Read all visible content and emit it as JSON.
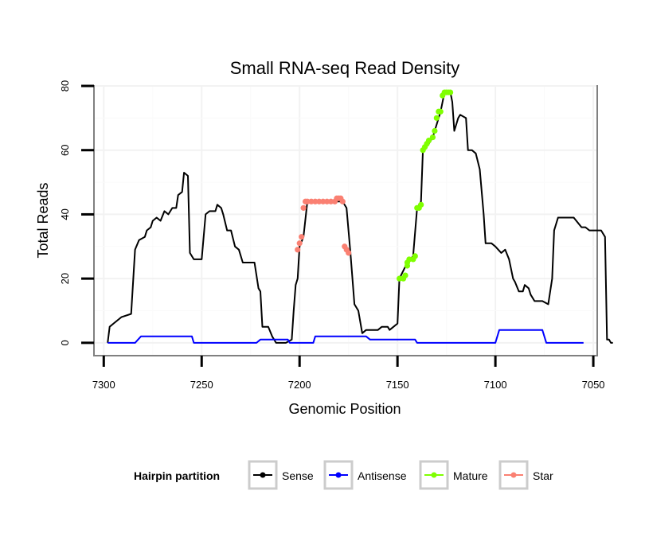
{
  "chart_data": {
    "type": "line",
    "title": "Small RNA-seq Read Density",
    "xlabel": "Genomic Position",
    "ylabel": "Total Reads",
    "xlim": [
      7305,
      7048
    ],
    "ylim": [
      -4,
      80
    ],
    "x_reversed": true,
    "x_ticks": [
      7300,
      7250,
      7200,
      7150,
      7100,
      7050
    ],
    "x_tick_labels": [
      "7300",
      "7250",
      "7200",
      "7150",
      "7100",
      "7050"
    ],
    "y_ticks": [
      0,
      20,
      40,
      60,
      80
    ],
    "y_tick_labels": [
      "0",
      "20",
      "40",
      "60",
      "80"
    ],
    "grid": true,
    "legend": {
      "title": "Hairpin partition",
      "position": "bottom",
      "entries": [
        {
          "label": "Sense",
          "color": "#000000"
        },
        {
          "label": "Antisense",
          "color": "#0000ff"
        },
        {
          "label": "Mature",
          "color": "#7fff00"
        },
        {
          "label": "Star",
          "color": "#fa8072"
        }
      ]
    },
    "series": [
      {
        "name": "Sense",
        "color": "#000000",
        "style": "line",
        "points": [
          [
            7298,
            0
          ],
          [
            7297,
            5
          ],
          [
            7295,
            6
          ],
          [
            7291,
            8
          ],
          [
            7286,
            9
          ],
          [
            7284,
            29
          ],
          [
            7282,
            32
          ],
          [
            7279,
            33
          ],
          [
            7278,
            35
          ],
          [
            7276,
            36
          ],
          [
            7275,
            38
          ],
          [
            7273,
            39
          ],
          [
            7271,
            38
          ],
          [
            7269,
            41
          ],
          [
            7267,
            40
          ],
          [
            7265,
            42
          ],
          [
            7263,
            42
          ],
          [
            7262,
            46
          ],
          [
            7260,
            47
          ],
          [
            7259,
            53
          ],
          [
            7257,
            52
          ],
          [
            7256,
            28
          ],
          [
            7254,
            26
          ],
          [
            7250,
            26
          ],
          [
            7248,
            40
          ],
          [
            7246,
            41
          ],
          [
            7243,
            41
          ],
          [
            7242,
            43
          ],
          [
            7240,
            42
          ],
          [
            7239,
            40
          ],
          [
            7237,
            35
          ],
          [
            7235,
            35
          ],
          [
            7233,
            30
          ],
          [
            7231,
            29
          ],
          [
            7229,
            25
          ],
          [
            7226,
            25
          ],
          [
            7223,
            25
          ],
          [
            7221,
            17
          ],
          [
            7220,
            16
          ],
          [
            7219,
            5
          ],
          [
            7216,
            5
          ],
          [
            7214,
            2
          ],
          [
            7212,
            0
          ],
          [
            7207,
            0
          ],
          [
            7204,
            1
          ],
          [
            7203,
            10
          ],
          [
            7202,
            18
          ],
          [
            7201,
            20
          ],
          [
            7200,
            30
          ],
          [
            7198,
            33
          ],
          [
            7196,
            44
          ],
          [
            7178,
            44
          ],
          [
            7176,
            42
          ],
          [
            7174,
            28
          ],
          [
            7172,
            12
          ],
          [
            7170,
            10
          ],
          [
            7168,
            3
          ],
          [
            7166,
            4
          ],
          [
            7160,
            4
          ],
          [
            7158,
            5
          ],
          [
            7155,
            5
          ],
          [
            7154,
            4
          ],
          [
            7152,
            5
          ],
          [
            7150,
            6
          ],
          [
            7149,
            20
          ],
          [
            7145,
            25
          ],
          [
            7142,
            27
          ],
          [
            7140,
            42
          ],
          [
            7138,
            44
          ],
          [
            7137,
            60
          ],
          [
            7134,
            62
          ],
          [
            7132,
            64
          ],
          [
            7131,
            66
          ],
          [
            7129,
            70
          ],
          [
            7128,
            72
          ],
          [
            7126,
            78
          ],
          [
            7123,
            78
          ],
          [
            7122,
            75
          ],
          [
            7121,
            66
          ],
          [
            7119,
            70
          ],
          [
            7118,
            71
          ],
          [
            7115,
            70
          ],
          [
            7114,
            60
          ],
          [
            7112,
            60
          ],
          [
            7110,
            59
          ],
          [
            7108,
            54
          ],
          [
            7106,
            40
          ],
          [
            7105,
            31
          ],
          [
            7102,
            31
          ],
          [
            7100,
            30
          ],
          [
            7097,
            28
          ],
          [
            7095,
            29
          ],
          [
            7093,
            26
          ],
          [
            7091,
            20
          ],
          [
            7090,
            19
          ],
          [
            7088,
            16
          ],
          [
            7086,
            16
          ],
          [
            7085,
            18
          ],
          [
            7083,
            17
          ],
          [
            7082,
            15
          ],
          [
            7080,
            13
          ],
          [
            7076,
            13
          ],
          [
            7073,
            12
          ],
          [
            7071,
            20
          ],
          [
            7070,
            35
          ],
          [
            7068,
            39
          ],
          [
            7060,
            39
          ],
          [
            7056,
            36
          ],
          [
            7054,
            36
          ],
          [
            7052,
            35
          ],
          [
            7046,
            35
          ],
          [
            7044,
            33
          ],
          [
            7043,
            1
          ],
          [
            7042,
            1
          ],
          [
            7041,
            0
          ],
          [
            7040,
            0
          ]
        ]
      },
      {
        "name": "Antisense",
        "color": "#0000ff",
        "style": "line",
        "points": [
          [
            7298,
            0
          ],
          [
            7284,
            0
          ],
          [
            7281,
            2
          ],
          [
            7255,
            2
          ],
          [
            7254,
            0
          ],
          [
            7222,
            0
          ],
          [
            7220,
            1
          ],
          [
            7206,
            1
          ],
          [
            7205,
            0
          ],
          [
            7193,
            0
          ],
          [
            7192,
            2
          ],
          [
            7166,
            2
          ],
          [
            7164,
            1
          ],
          [
            7141,
            1
          ],
          [
            7140,
            0
          ],
          [
            7100,
            0
          ],
          [
            7098,
            4
          ],
          [
            7076,
            4
          ],
          [
            7074,
            0
          ],
          [
            7055,
            0
          ]
        ]
      },
      {
        "name": "Mature",
        "color": "#7fff00",
        "style": "points",
        "points": [
          [
            7149,
            20
          ],
          [
            7147,
            20
          ],
          [
            7146,
            21
          ],
          [
            7145,
            24
          ],
          [
            7145,
            25
          ],
          [
            7144,
            26
          ],
          [
            7142,
            26
          ],
          [
            7141,
            27
          ],
          [
            7140,
            42
          ],
          [
            7139,
            42
          ],
          [
            7138,
            43
          ],
          [
            7137,
            60
          ],
          [
            7136,
            61
          ],
          [
            7135,
            62
          ],
          [
            7134,
            63
          ],
          [
            7132,
            64
          ],
          [
            7131,
            66
          ],
          [
            7130,
            70
          ],
          [
            7129,
            72
          ],
          [
            7128,
            72
          ],
          [
            7127,
            77
          ],
          [
            7126,
            78
          ],
          [
            7125,
            78
          ],
          [
            7124,
            78
          ],
          [
            7123,
            78
          ]
        ]
      },
      {
        "name": "Star",
        "color": "#fa8072",
        "style": "points",
        "points": [
          [
            7201,
            29
          ],
          [
            7200,
            31
          ],
          [
            7199,
            33
          ],
          [
            7198,
            42
          ],
          [
            7197,
            44
          ],
          [
            7196,
            44
          ],
          [
            7194,
            44
          ],
          [
            7192,
            44
          ],
          [
            7190,
            44
          ],
          [
            7188,
            44
          ],
          [
            7186,
            44
          ],
          [
            7184,
            44
          ],
          [
            7182,
            44
          ],
          [
            7181,
            45
          ],
          [
            7180,
            45
          ],
          [
            7179,
            45
          ],
          [
            7178,
            44
          ],
          [
            7177,
            30
          ],
          [
            7176,
            29
          ],
          [
            7175,
            28
          ]
        ]
      }
    ]
  }
}
